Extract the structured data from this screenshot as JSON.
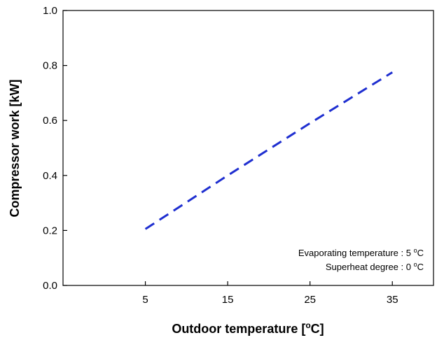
{
  "chart_data": {
    "type": "line",
    "title": "",
    "xlabel": "Outdoor temperature [",
    "xlabel_sup": "o",
    "xlabel_end": "C]",
    "ylabel": "Compressor work [kW]",
    "xlim": [
      -5,
      40
    ],
    "ylim": [
      0.0,
      1.0
    ],
    "x_ticks": [
      5,
      15,
      25,
      35
    ],
    "y_ticks": [
      "0.0",
      "0.2",
      "0.4",
      "0.6",
      "0.8",
      "1.0"
    ],
    "grid": false,
    "series": [
      {
        "color": "#1f2fd0",
        "style": "dashed",
        "x": [
          5,
          15,
          25,
          35
        ],
        "y": [
          0.205,
          0.4,
          0.59,
          0.775
        ]
      }
    ],
    "annotations": [
      {
        "text": "Evaporating temperature : 5 ",
        "sup": "o",
        "end": "C"
      },
      {
        "text": "Superheat degree : 0 ",
        "sup": "o",
        "end": "C"
      }
    ]
  }
}
